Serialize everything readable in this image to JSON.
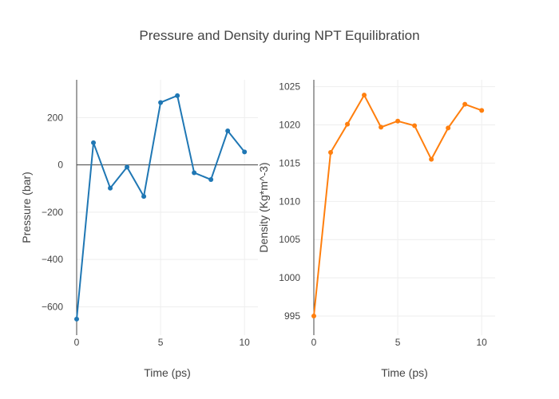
{
  "title": "Pressure and Density during NPT Equilibration",
  "chart_data": [
    {
      "type": "line",
      "x": [
        0,
        1,
        2,
        3,
        4,
        5,
        6,
        7,
        8,
        9,
        10
      ],
      "series": [
        {
          "values": [
            -652,
            94,
            -98,
            -9,
            -133,
            264,
            293,
            -33,
            -62,
            144,
            55
          ],
          "color": "#1f77b4"
        }
      ],
      "xlabel": "Time (ps)",
      "ylabel": "Pressure (bar)",
      "xlim": [
        0,
        10.8
      ],
      "ylim": [
        -720,
        360
      ],
      "xticks": [
        0,
        5,
        10
      ],
      "yticks": [
        200,
        0,
        -200,
        -400,
        -600
      ],
      "ytick_labels": [
        "200",
        "0",
        "−200",
        "−400",
        "−600"
      ],
      "grid": true
    },
    {
      "type": "line",
      "x": [
        0,
        1,
        2,
        3,
        4,
        5,
        6,
        7,
        8,
        9,
        10
      ],
      "series": [
        {
          "values": [
            995.0,
            1016.4,
            1020.1,
            1023.9,
            1019.7,
            1020.5,
            1019.9,
            1015.5,
            1019.6,
            1022.7,
            1021.9
          ],
          "color": "#ff7f0e"
        }
      ],
      "xlabel": "Time (ps)",
      "ylabel": "Density (Kg*m^-3)",
      "xlim": [
        0,
        10.8
      ],
      "ylim": [
        992.5,
        1025.9
      ],
      "xticks": [
        0,
        5,
        10
      ],
      "yticks": [
        995,
        1000,
        1005,
        1010,
        1015,
        1020,
        1025
      ],
      "ytick_labels": [
        "995",
        "1000",
        "1005",
        "1010",
        "1015",
        "1020",
        "1025"
      ],
      "grid": true
    }
  ]
}
